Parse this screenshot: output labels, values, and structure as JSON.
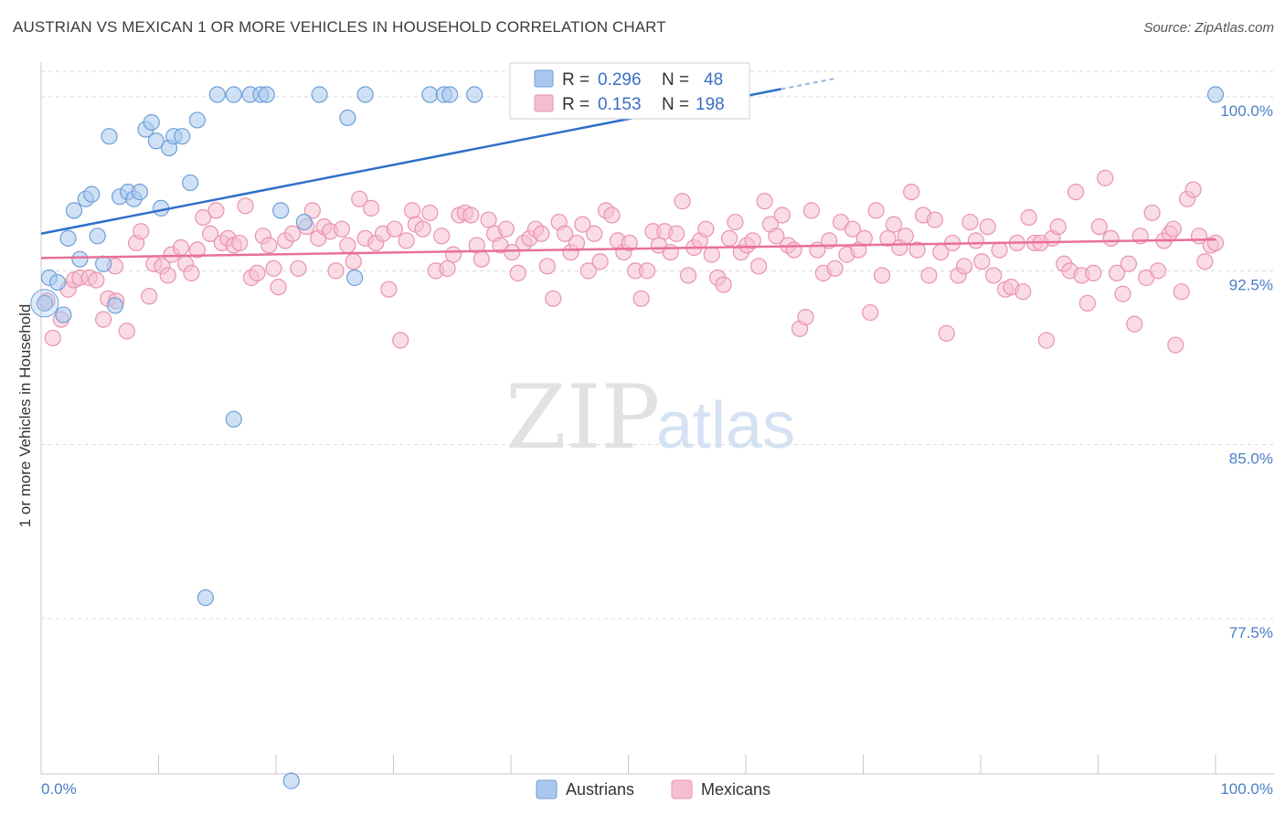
{
  "title": "AUSTRIAN VS MEXICAN 1 OR MORE VEHICLES IN HOUSEHOLD CORRELATION CHART",
  "source": "Source: ZipAtlas.com",
  "watermark": {
    "zip": "ZIP",
    "atlas": "atlas"
  },
  "colors": {
    "austrians_fill": "#aac8ee",
    "austrians_stroke": "#6f9fd8",
    "austrians_line": "#2f6fca",
    "mexicans_fill": "#f6bfd0",
    "mexicans_stroke": "#ea93ae",
    "mexicans_line": "#e8709a",
    "tick_label": "#4a7ec8",
    "grid": "#d8d8d8"
  },
  "legend": {
    "austrians": {
      "r_label": "R =",
      "r_value": "0.296",
      "n_label": "N =",
      "n_value": "48"
    },
    "mexicans": {
      "r_label": "R =",
      "r_value": "0.153",
      "n_label": "N =",
      "n_value": "198"
    }
  },
  "bottom_legend": [
    "Austrians",
    "Mexicans"
  ],
  "chart_data": {
    "type": "scatter",
    "title": "AUSTRIAN VS MEXICAN 1 OR MORE VEHICLES IN HOUSEHOLD CORRELATION CHART",
    "xlabel": "",
    "ylabel": "1 or more Vehicles in Household",
    "xlim": [
      0,
      100
    ],
    "ylim": [
      70.8,
      101.5
    ],
    "x_tick_labels": [
      "0.0%",
      "100.0%"
    ],
    "y_ticks": [
      77.5,
      85.0,
      92.5,
      100.0
    ],
    "y_tick_labels": [
      "77.5%",
      "85.0%",
      "92.5%",
      "100.0%"
    ],
    "grid": true,
    "legend_position": "top-center",
    "series": [
      {
        "name": "Austrians",
        "r": 0.296,
        "n": 48,
        "trend": {
          "x0": 0,
          "y0": 94.1,
          "x1": 100,
          "y1": 104.0
        },
        "points": [
          [
            0.3,
            91.1
          ],
          [
            0.7,
            92.2
          ],
          [
            1.4,
            92.0
          ],
          [
            1.9,
            90.6
          ],
          [
            2.3,
            93.9
          ],
          [
            2.8,
            95.1
          ],
          [
            3.3,
            93.0
          ],
          [
            3.8,
            95.6
          ],
          [
            4.3,
            95.8
          ],
          [
            4.8,
            94.0
          ],
          [
            5.3,
            92.8
          ],
          [
            5.8,
            98.3
          ],
          [
            6.3,
            91.0
          ],
          [
            6.7,
            95.7
          ],
          [
            7.4,
            95.9
          ],
          [
            7.9,
            95.6
          ],
          [
            8.4,
            95.9
          ],
          [
            8.9,
            98.6
          ],
          [
            9.4,
            98.9
          ],
          [
            9.8,
            98.1
          ],
          [
            10.2,
            95.2
          ],
          [
            10.9,
            97.8
          ],
          [
            11.3,
            98.3
          ],
          [
            12.0,
            98.3
          ],
          [
            12.7,
            96.3
          ],
          [
            13.3,
            99.0
          ],
          [
            14.0,
            78.4
          ],
          [
            15.0,
            100.1
          ],
          [
            16.4,
            86.1
          ],
          [
            16.4,
            100.1
          ],
          [
            17.8,
            100.1
          ],
          [
            18.7,
            100.1
          ],
          [
            19.2,
            100.1
          ],
          [
            20.4,
            95.1
          ],
          [
            21.3,
            70.5
          ],
          [
            22.4,
            94.6
          ],
          [
            23.7,
            100.1
          ],
          [
            26.1,
            99.1
          ],
          [
            26.7,
            92.2
          ],
          [
            27.6,
            100.1
          ],
          [
            33.1,
            100.1
          ],
          [
            34.3,
            100.1
          ],
          [
            34.8,
            100.1
          ],
          [
            36.9,
            100.1
          ],
          [
            41.3,
            100.1
          ],
          [
            47.1,
            100.1
          ],
          [
            52.2,
            100.1
          ],
          [
            100.0,
            100.1
          ]
        ]
      },
      {
        "name": "Mexicans",
        "r": 0.153,
        "n": 198,
        "trend": {
          "x0": 0,
          "y0": 93.05,
          "x1": 100,
          "y1": 93.85
        },
        "points": [
          [
            0.5,
            91.2
          ],
          [
            1.0,
            89.6
          ],
          [
            1.7,
            90.4
          ],
          [
            2.3,
            91.7
          ],
          [
            2.8,
            92.1
          ],
          [
            3.3,
            92.2
          ],
          [
            4.1,
            92.2
          ],
          [
            4.7,
            92.1
          ],
          [
            5.3,
            90.4
          ],
          [
            5.7,
            91.3
          ],
          [
            6.3,
            92.7
          ],
          [
            6.4,
            91.2
          ],
          [
            7.3,
            89.9
          ],
          [
            8.1,
            93.7
          ],
          [
            8.5,
            94.2
          ],
          [
            9.2,
            91.4
          ],
          [
            9.6,
            92.8
          ],
          [
            10.3,
            92.7
          ],
          [
            10.8,
            92.3
          ],
          [
            11.1,
            93.2
          ],
          [
            11.9,
            93.5
          ],
          [
            12.3,
            92.8
          ],
          [
            12.8,
            92.4
          ],
          [
            13.3,
            93.4
          ],
          [
            13.8,
            94.8
          ],
          [
            14.4,
            94.1
          ],
          [
            14.9,
            95.1
          ],
          [
            15.4,
            93.7
          ],
          [
            15.9,
            93.9
          ],
          [
            16.4,
            93.6
          ],
          [
            16.9,
            93.7
          ],
          [
            17.4,
            95.3
          ],
          [
            17.9,
            92.2
          ],
          [
            18.4,
            92.4
          ],
          [
            18.9,
            94.0
          ],
          [
            19.4,
            93.6
          ],
          [
            19.8,
            92.6
          ],
          [
            20.2,
            91.8
          ],
          [
            20.8,
            93.8
          ],
          [
            21.4,
            94.1
          ],
          [
            21.9,
            92.6
          ],
          [
            22.6,
            94.4
          ],
          [
            23.1,
            95.1
          ],
          [
            23.6,
            93.9
          ],
          [
            24.1,
            94.4
          ],
          [
            24.6,
            94.2
          ],
          [
            25.1,
            92.5
          ],
          [
            25.6,
            94.3
          ],
          [
            26.1,
            93.6
          ],
          [
            26.6,
            92.9
          ],
          [
            27.1,
            95.6
          ],
          [
            27.6,
            93.9
          ],
          [
            28.1,
            95.2
          ],
          [
            28.5,
            93.7
          ],
          [
            29.1,
            94.1
          ],
          [
            29.6,
            91.7
          ],
          [
            30.1,
            94.3
          ],
          [
            30.6,
            89.5
          ],
          [
            31.1,
            93.8
          ],
          [
            31.6,
            95.1
          ],
          [
            31.9,
            94.5
          ],
          [
            32.5,
            94.3
          ],
          [
            33.1,
            95.0
          ],
          [
            33.6,
            92.5
          ],
          [
            34.1,
            94.0
          ],
          [
            34.6,
            92.6
          ],
          [
            35.1,
            93.2
          ],
          [
            35.6,
            94.9
          ],
          [
            36.1,
            95.0
          ],
          [
            36.6,
            94.9
          ],
          [
            37.1,
            93.6
          ],
          [
            37.5,
            93.0
          ],
          [
            38.1,
            94.7
          ],
          [
            38.6,
            94.1
          ],
          [
            39.1,
            93.6
          ],
          [
            39.6,
            94.3
          ],
          [
            40.1,
            93.3
          ],
          [
            40.6,
            92.4
          ],
          [
            41.1,
            93.7
          ],
          [
            41.6,
            93.9
          ],
          [
            42.1,
            94.3
          ],
          [
            42.6,
            94.1
          ],
          [
            43.1,
            92.7
          ],
          [
            43.6,
            91.3
          ],
          [
            44.1,
            94.6
          ],
          [
            44.6,
            94.1
          ],
          [
            45.1,
            93.3
          ],
          [
            45.6,
            93.7
          ],
          [
            46.1,
            94.5
          ],
          [
            46.6,
            92.5
          ],
          [
            47.1,
            94.1
          ],
          [
            47.6,
            92.9
          ],
          [
            48.1,
            95.1
          ],
          [
            48.6,
            94.9
          ],
          [
            49.1,
            93.8
          ],
          [
            49.6,
            93.3
          ],
          [
            50.1,
            93.7
          ],
          [
            50.6,
            92.5
          ],
          [
            51.1,
            91.3
          ],
          [
            51.6,
            92.5
          ],
          [
            52.1,
            94.2
          ],
          [
            52.6,
            93.6
          ],
          [
            53.1,
            94.2
          ],
          [
            53.6,
            93.3
          ],
          [
            54.1,
            94.1
          ],
          [
            54.6,
            95.5
          ],
          [
            55.1,
            92.3
          ],
          [
            55.6,
            93.5
          ],
          [
            56.1,
            93.8
          ],
          [
            56.6,
            94.3
          ],
          [
            57.1,
            93.2
          ],
          [
            57.6,
            92.2
          ],
          [
            58.1,
            91.9
          ],
          [
            58.6,
            93.9
          ],
          [
            59.1,
            94.6
          ],
          [
            59.6,
            93.3
          ],
          [
            60.1,
            93.6
          ],
          [
            60.6,
            93.8
          ],
          [
            61.1,
            92.7
          ],
          [
            61.6,
            95.5
          ],
          [
            62.1,
            94.5
          ],
          [
            62.6,
            94.0
          ],
          [
            63.1,
            94.9
          ],
          [
            63.6,
            93.6
          ],
          [
            64.1,
            93.4
          ],
          [
            64.6,
            90.0
          ],
          [
            65.1,
            90.5
          ],
          [
            65.6,
            95.1
          ],
          [
            66.1,
            93.4
          ],
          [
            66.6,
            92.4
          ],
          [
            67.1,
            93.8
          ],
          [
            67.6,
            92.6
          ],
          [
            68.1,
            94.6
          ],
          [
            68.6,
            93.2
          ],
          [
            69.1,
            94.3
          ],
          [
            69.6,
            93.4
          ],
          [
            70.1,
            93.9
          ],
          [
            70.6,
            90.7
          ],
          [
            71.1,
            95.1
          ],
          [
            71.6,
            92.3
          ],
          [
            72.1,
            93.9
          ],
          [
            72.6,
            94.5
          ],
          [
            73.1,
            93.5
          ],
          [
            73.6,
            94.0
          ],
          [
            74.1,
            95.9
          ],
          [
            74.6,
            93.4
          ],
          [
            75.1,
            94.9
          ],
          [
            75.6,
            92.3
          ],
          [
            76.1,
            94.7
          ],
          [
            76.6,
            93.3
          ],
          [
            77.1,
            89.8
          ],
          [
            77.6,
            93.7
          ],
          [
            78.1,
            92.3
          ],
          [
            78.6,
            92.7
          ],
          [
            79.1,
            94.6
          ],
          [
            79.6,
            93.8
          ],
          [
            80.1,
            92.9
          ],
          [
            80.6,
            94.4
          ],
          [
            81.1,
            92.3
          ],
          [
            81.6,
            93.4
          ],
          [
            82.1,
            91.7
          ],
          [
            82.6,
            91.8
          ],
          [
            83.1,
            93.7
          ],
          [
            83.6,
            91.6
          ],
          [
            84.1,
            94.8
          ],
          [
            84.6,
            93.7
          ],
          [
            85.1,
            93.7
          ],
          [
            85.6,
            89.5
          ],
          [
            86.1,
            93.9
          ],
          [
            86.6,
            94.4
          ],
          [
            87.1,
            92.8
          ],
          [
            87.6,
            92.5
          ],
          [
            88.1,
            95.9
          ],
          [
            88.6,
            92.3
          ],
          [
            89.1,
            91.1
          ],
          [
            89.6,
            92.4
          ],
          [
            90.1,
            94.4
          ],
          [
            90.6,
            96.5
          ],
          [
            91.1,
            93.9
          ],
          [
            91.6,
            92.4
          ],
          [
            92.1,
            91.5
          ],
          [
            92.6,
            92.8
          ],
          [
            93.1,
            90.2
          ],
          [
            93.6,
            94.0
          ],
          [
            94.1,
            92.2
          ],
          [
            94.6,
            95.0
          ],
          [
            95.1,
            92.5
          ],
          [
            95.6,
            93.8
          ],
          [
            96.1,
            94.1
          ],
          [
            96.6,
            89.3
          ],
          [
            97.1,
            91.6
          ],
          [
            97.6,
            95.6
          ],
          [
            98.1,
            96.0
          ],
          [
            98.6,
            94.0
          ],
          [
            99.1,
            92.9
          ],
          [
            99.6,
            93.6
          ],
          [
            100.0,
            93.7
          ],
          [
            96.4,
            94.3
          ]
        ]
      }
    ]
  }
}
